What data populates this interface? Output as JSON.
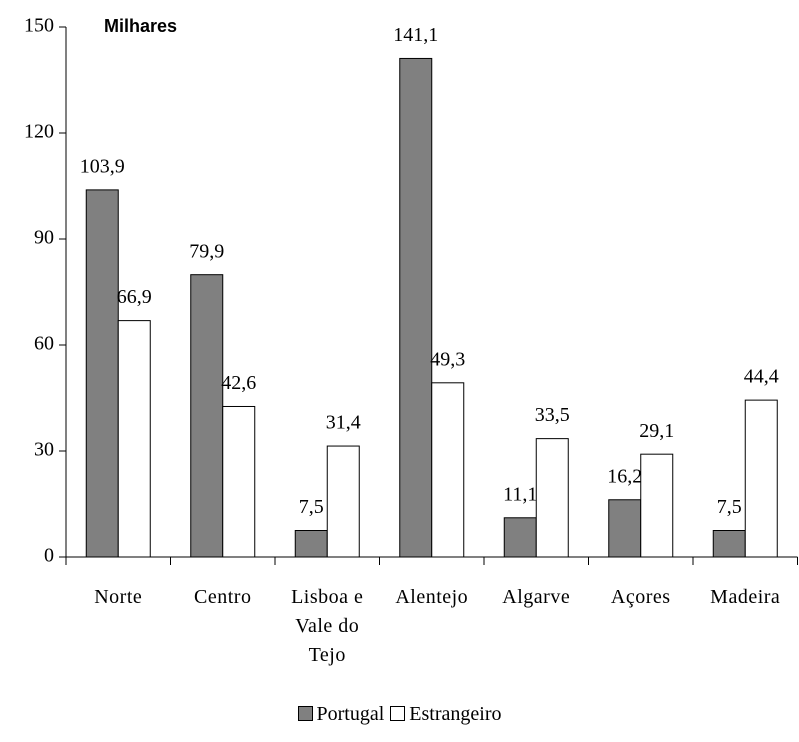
{
  "chart_data": {
    "type": "bar",
    "unit_label": "Milhares",
    "categories": [
      "Norte",
      "Centro",
      "Lisboa e Vale do Tejo",
      "Alentejo",
      "Algarve",
      "Açores",
      "Madeira"
    ],
    "series": [
      {
        "name": "Portugal",
        "color": "#808080",
        "values": [
          103.9,
          79.9,
          7.5,
          141.1,
          11.1,
          16.2,
          7.5
        ],
        "value_labels": [
          "103,9",
          "79,9",
          "7,5",
          "141,1",
          "11,1",
          "16,2",
          "7,5"
        ]
      },
      {
        "name": "Estrangeiro",
        "color": "#ffffff",
        "values": [
          66.9,
          42.6,
          31.4,
          49.3,
          33.5,
          29.1,
          44.4
        ],
        "value_labels": [
          "66,9",
          "42,6",
          "31,4",
          "49,3",
          "33,5",
          "29,1",
          "44,4"
        ]
      }
    ],
    "ylim": [
      0,
      150
    ],
    "yticks": [
      0,
      30,
      60,
      90,
      120,
      150
    ],
    "grid": false,
    "legend": "bottom"
  }
}
